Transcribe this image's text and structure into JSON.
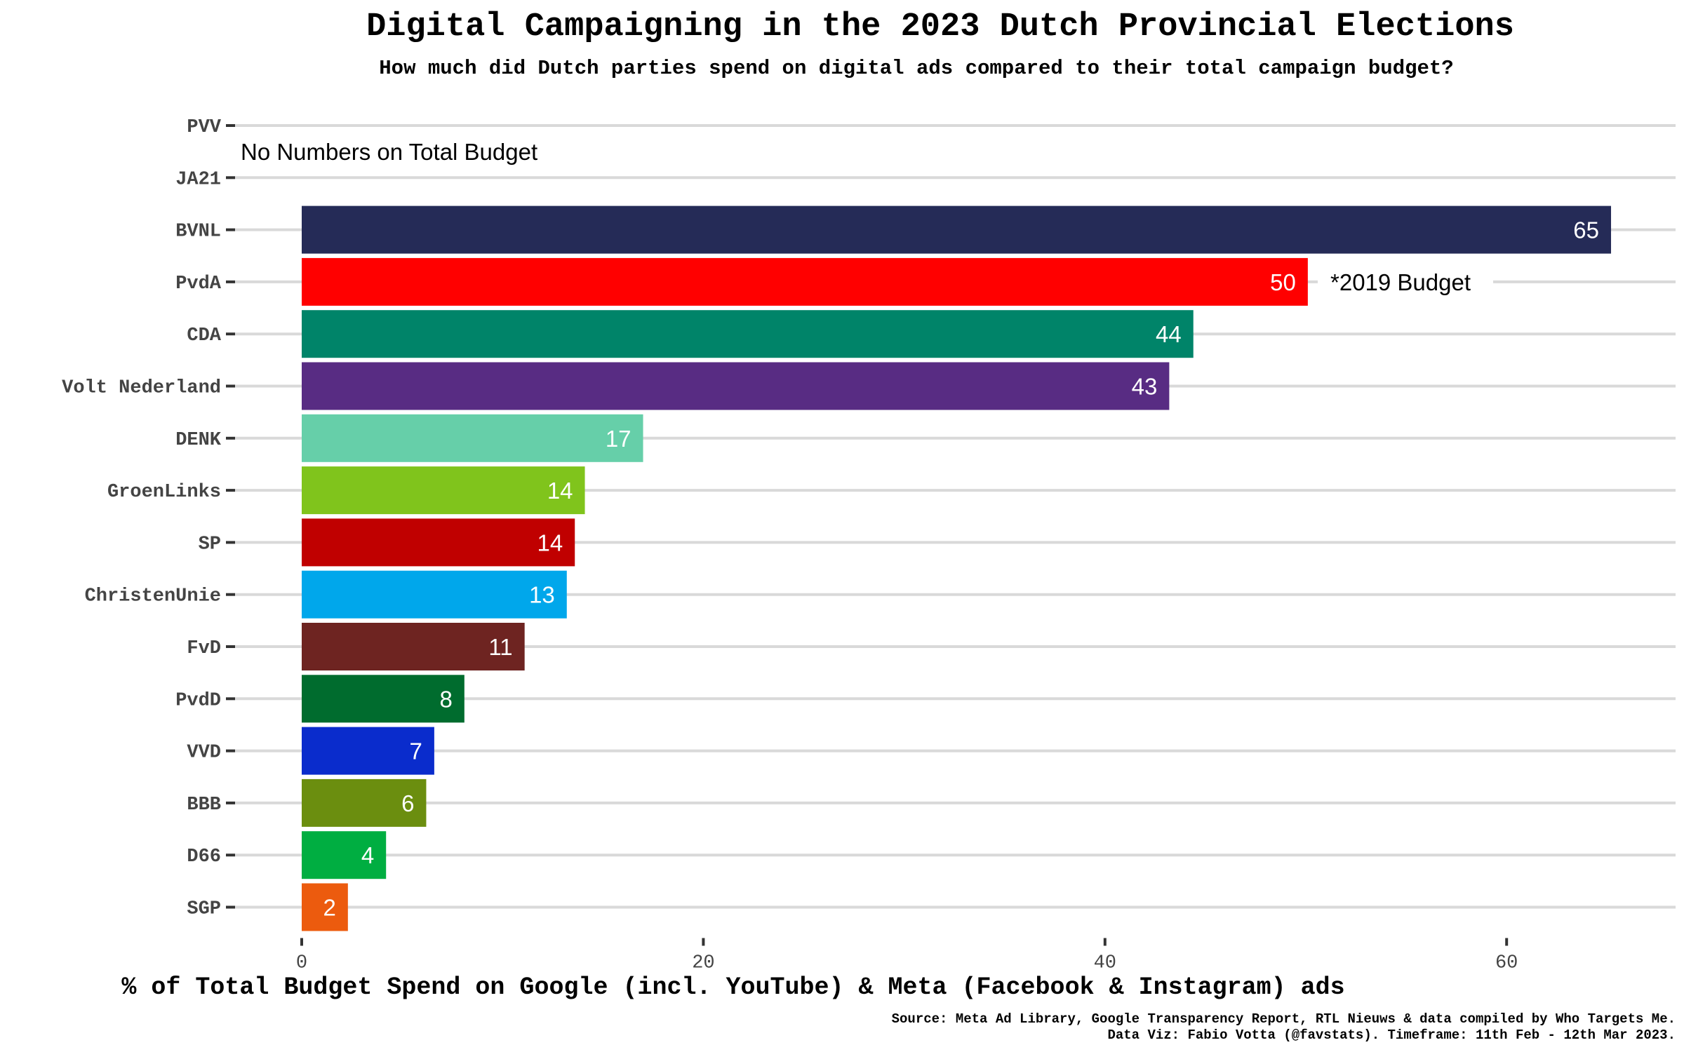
{
  "chart_data": {
    "type": "bar",
    "orientation": "horizontal",
    "title": "Digital Campaigning in the 2023 Dutch Provincial Elections",
    "subtitle": "How much did Dutch parties spend on digital ads compared to their total campaign budget?",
    "xlabel": "% of Total Budget Spend on Google (incl. YouTube) & Meta (Facebook & Instagram) ads",
    "ylabel": "",
    "xlim": [
      0,
      68
    ],
    "x_ticks": [
      "0",
      "20",
      "40",
      "60"
    ],
    "grid": "horizontal gridlines",
    "legend": "none",
    "categories": [
      "PVV",
      "JA21",
      "BVNL",
      "PvdA",
      "CDA",
      "Volt Nederland",
      "DENK",
      "GroenLinks",
      "SP",
      "ChristenUnie",
      "FvD",
      "PvdD",
      "VVD",
      "BBB",
      "D66",
      "SGP"
    ],
    "values": [
      null,
      null,
      65.2,
      50.1,
      44.4,
      43.2,
      17.0,
      14.1,
      13.6,
      13.2,
      11.1,
      8.1,
      6.6,
      6.2,
      4.2,
      2.3
    ],
    "value_labels": [
      "",
      "",
      "65",
      "50",
      "44",
      "43",
      "17",
      "14",
      "14",
      "13",
      "11",
      "8",
      "7",
      "6",
      "4",
      "2"
    ],
    "colors": [
      "#000000",
      "#000000",
      "#252b57",
      "#ff0000",
      "#008469",
      "#582c83",
      "#66cfa9",
      "#80c41c",
      "#c00000",
      "#00a7eb",
      "#6e2421",
      "#006c2e",
      "#0a2ccc",
      "#6b8e0f",
      "#00ae41",
      "#ec5b0e"
    ],
    "annotations": {
      "no_budget": "No Numbers on Total Budget",
      "pvda_note": "*2019 Budget"
    },
    "caption": [
      "Source: Meta Ad Library, Google Transparency Report, RTL Nieuws & data compiled by Who Targets Me.",
      "Data Viz: Fabio Votta (@favstats). Timeframe: 11th Feb - 12th Mar 2023."
    ]
  }
}
